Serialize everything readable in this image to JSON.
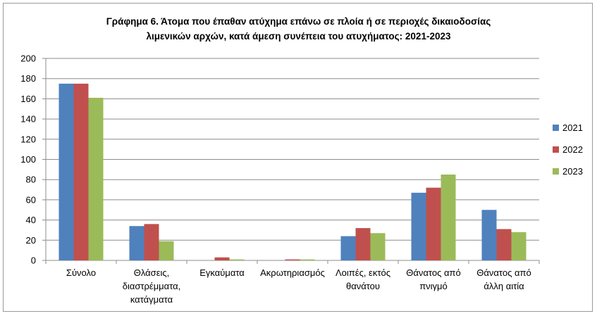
{
  "chart_data": {
    "type": "bar",
    "title_lines": [
      "Γράφημα 6. Άτομα που έπαθαν ατύχημα επάνω σε πλοία ή σε περιοχές δικαιοδοσίας",
      "λιμενικών αρχών, κατά άμεση συνέπεια του ατυχήματος: 2021-2023"
    ],
    "categories": [
      [
        "Σύνολο"
      ],
      [
        "Θλάσεις,",
        "διαστρέμματα,",
        "κατάγματα"
      ],
      [
        "Εγκαύματα"
      ],
      [
        "Ακρωτηριασμός"
      ],
      [
        "Λοιπές, εκτός",
        "θανάτου"
      ],
      [
        "Θάνατος από",
        "πνιγμό"
      ],
      [
        "Θάνατος από",
        "άλλη αιτία"
      ]
    ],
    "series": [
      {
        "name": "2021",
        "color": "#4f81bd",
        "values": [
          175,
          34,
          0,
          0,
          24,
          67,
          50
        ]
      },
      {
        "name": "2022",
        "color": "#c0504d",
        "values": [
          175,
          36,
          3,
          1,
          32,
          72,
          31
        ]
      },
      {
        "name": "2023",
        "color": "#9bbb59",
        "values": [
          161,
          19,
          1,
          1,
          27,
          85,
          28
        ]
      }
    ],
    "ylim": [
      0,
      200
    ],
    "yticks": [
      0,
      20,
      40,
      60,
      80,
      100,
      120,
      140,
      160,
      180,
      200
    ],
    "grid": true,
    "legend_position": "right"
  }
}
